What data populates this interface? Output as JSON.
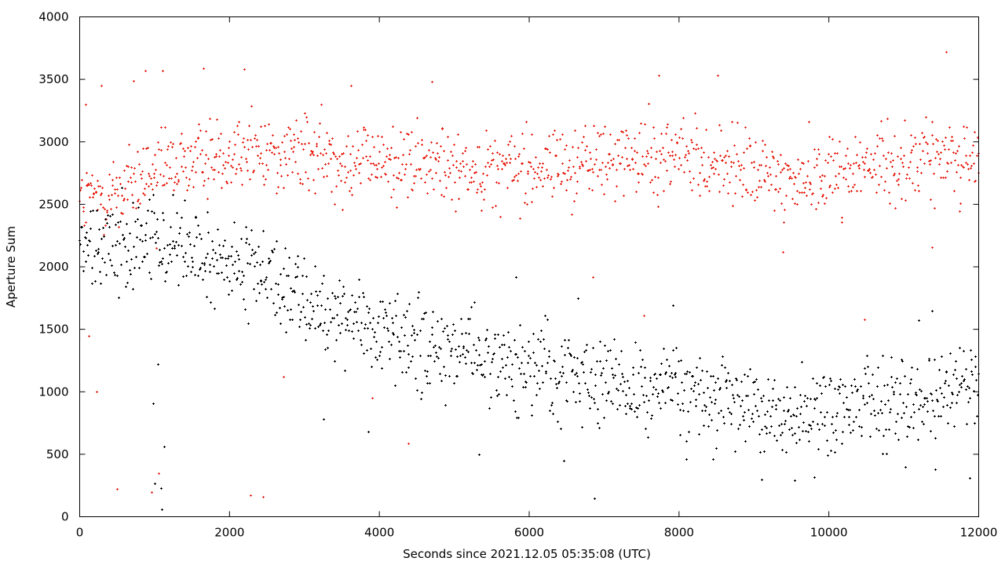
{
  "chart_data": {
    "type": "scatter",
    "xlabel": "Seconds since 2021.12.05 05:35:08 (UTC)",
    "ylabel": "Aperture Sum",
    "xlim": [
      0,
      12000
    ],
    "ylim": [
      0,
      4000
    ],
    "x_ticks": [
      0,
      2000,
      4000,
      6000,
      8000,
      10000,
      12000
    ],
    "y_ticks": [
      0,
      500,
      1000,
      1500,
      2000,
      2500,
      3000,
      3500,
      4000
    ],
    "x_tick_labels": [
      "0",
      "2000",
      "4000",
      "6000",
      "8000",
      "10000",
      "12000"
    ],
    "y_tick_labels": [
      "0",
      "500",
      "1000",
      "1500",
      "2000",
      "2500",
      "3000",
      "3500",
      "4000"
    ],
    "grid": false,
    "legend": "none",
    "marker": "+",
    "series": [
      {
        "color": "#e8281c",
        "trend": {
          "x": [
            0,
            500,
            1000,
            2000,
            3000,
            4000,
            5000,
            6000,
            7000,
            8000,
            9000,
            9500,
            10000,
            11000,
            12000
          ],
          "y": [
            2500,
            2600,
            2750,
            2950,
            2900,
            2850,
            2800,
            2800,
            2850,
            2900,
            2750,
            2700,
            2750,
            2850,
            2900
          ]
        },
        "spread": 200,
        "points": [
          [
            80,
            3300
          ],
          [
            120,
            1450
          ],
          [
            230,
            1000
          ],
          [
            290,
            3450
          ],
          [
            500,
            220
          ],
          [
            720,
            3490
          ],
          [
            880,
            3570
          ],
          [
            960,
            200
          ],
          [
            1020,
            2150
          ],
          [
            1050,
            350
          ],
          [
            1110,
            3570
          ],
          [
            1650,
            3590
          ],
          [
            2200,
            3580
          ],
          [
            2280,
            170
          ],
          [
            2450,
            160
          ],
          [
            2720,
            1120
          ],
          [
            3620,
            3450
          ],
          [
            3900,
            950
          ],
          [
            4390,
            590
          ],
          [
            4700,
            3480
          ],
          [
            6850,
            1920
          ],
          [
            7530,
            1610
          ],
          [
            7730,
            3530
          ],
          [
            8520,
            3530
          ],
          [
            9380,
            2120
          ],
          [
            10480,
            1580
          ],
          [
            11380,
            2160
          ],
          [
            11560,
            3720
          ]
        ]
      },
      {
        "color": "#000000",
        "trend": {
          "x": [
            0,
            500,
            1000,
            1500,
            2000,
            2500,
            3000,
            3500,
            4000,
            5000,
            6000,
            7000,
            8000,
            9000,
            9500,
            10000,
            10500,
            11000,
            11500,
            12000
          ],
          "y": [
            2150,
            2200,
            2250,
            2100,
            2000,
            1900,
            1700,
            1600,
            1450,
            1300,
            1200,
            1100,
            1000,
            900,
            820,
            880,
            900,
            920,
            950,
            1050
          ]
        },
        "spread": 220,
        "points": [
          [
            980,
            910
          ],
          [
            1000,
            270
          ],
          [
            1040,
            1220
          ],
          [
            1080,
            230
          ],
          [
            1100,
            60
          ],
          [
            1130,
            560
          ],
          [
            3250,
            780
          ],
          [
            3850,
            680
          ],
          [
            5330,
            500
          ],
          [
            5820,
            1920
          ],
          [
            6460,
            450
          ],
          [
            6650,
            1750
          ],
          [
            6870,
            150
          ],
          [
            7920,
            1690
          ],
          [
            8100,
            460
          ],
          [
            8450,
            460
          ],
          [
            9100,
            300
          ],
          [
            9540,
            290
          ],
          [
            9800,
            320
          ],
          [
            10100,
            620
          ],
          [
            11380,
            1650
          ],
          [
            11420,
            380
          ],
          [
            11880,
            310
          ],
          [
            11200,
            1570
          ]
        ]
      }
    ]
  }
}
